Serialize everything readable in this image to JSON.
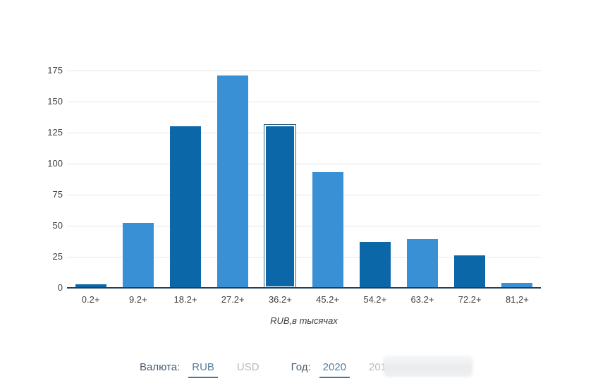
{
  "chart_data": {
    "type": "bar",
    "categories": [
      "0.2+",
      "9.2+",
      "18.2+",
      "27.2+",
      "36.2+",
      "45.2+",
      "54.2+",
      "63.2+",
      "72.2+",
      "81,2+"
    ],
    "values": [
      3,
      52,
      130,
      171,
      131,
      93,
      37,
      39,
      26,
      4
    ],
    "selected_index": 4,
    "title": "",
    "xlabel": "RUB,в тысячах",
    "ylabel": "",
    "ylim": [
      0,
      175
    ],
    "yticks": [
      0,
      25,
      50,
      75,
      100,
      125,
      150,
      175
    ],
    "grid": true,
    "legend": "none",
    "bar_color_even": "#0c67a9",
    "bar_color_odd": "#3a90d5"
  },
  "controls": {
    "currency_label": "Валюта:",
    "currency_options": [
      {
        "label": "RUB",
        "selected": true
      },
      {
        "label": "USD",
        "selected": false
      }
    ],
    "year_label": "Год:",
    "year_options": [
      {
        "label": "2020",
        "selected": true
      },
      {
        "label": "2019",
        "selected": false
      }
    ]
  },
  "colors": {
    "dark_bar": "#0c67a9",
    "light_bar": "#3a90d5",
    "axis_line": "#1e4059",
    "gridline": "#e6e6e6",
    "tick_text": "#404040",
    "control_label_text": "#4a5b6d",
    "selected_link": "#567e9c",
    "selected_underline": "#3778aa",
    "inactive_link": "#b4bbc1",
    "selected_bar_outline": "#2b6077"
  }
}
